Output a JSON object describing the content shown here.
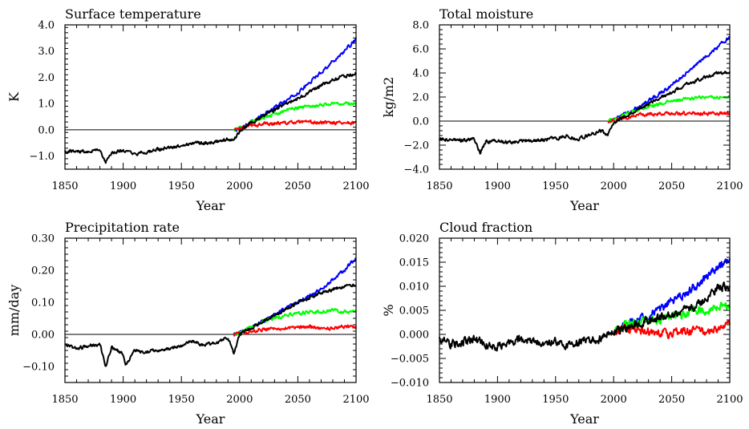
{
  "figure": {
    "background": "#ffffff",
    "scenario_colors": {
      "black": "#000000",
      "blue": "#0000ff",
      "green": "#00ff00",
      "red": "#ff0000"
    }
  },
  "chart_data": [
    {
      "type": "line",
      "title": "Surface temperature",
      "xlabel": "Year",
      "ylabel": "K",
      "xlim": [
        1850,
        2100
      ],
      "ylim": [
        -1.5,
        4.0
      ],
      "xticks": [
        1850,
        1900,
        1950,
        2000,
        2050,
        2100
      ],
      "xtick_labels": [
        "1850",
        "1900",
        "1950",
        "2000",
        "2050",
        "2100"
      ],
      "yticks": [
        -1.0,
        0.0,
        1.0,
        2.0,
        3.0,
        4.0
      ],
      "ytick_labels": [
        "−1.0",
        "0.0",
        "1.0",
        "2.0",
        "3.0",
        "4.0"
      ],
      "zero_line": true,
      "series": [
        {
          "color": "#0000ff",
          "x": [
            1995,
            2000,
            2010,
            2020,
            2030,
            2040,
            2050,
            2060,
            2070,
            2080,
            2090,
            2100
          ],
          "y": [
            0.0,
            0.05,
            0.3,
            0.55,
            0.85,
            1.1,
            1.4,
            1.8,
            2.2,
            2.6,
            3.0,
            3.45
          ]
        },
        {
          "color": "#00ff00",
          "x": [
            1995,
            2000,
            2010,
            2020,
            2030,
            2040,
            2050,
            2060,
            2070,
            2080,
            2090,
            2100
          ],
          "y": [
            0.0,
            0.05,
            0.3,
            0.45,
            0.6,
            0.75,
            0.85,
            0.9,
            0.95,
            1.0,
            1.0,
            1.0
          ]
        },
        {
          "color": "#ff0000",
          "x": [
            1995,
            2000,
            2010,
            2020,
            2030,
            2040,
            2050,
            2060,
            2070,
            2080,
            2090,
            2100
          ],
          "y": [
            0.0,
            0.05,
            0.15,
            0.22,
            0.25,
            0.27,
            0.28,
            0.28,
            0.27,
            0.28,
            0.28,
            0.25
          ]
        },
        {
          "color": "#000000",
          "x": [
            1850,
            1860,
            1870,
            1880,
            1885,
            1890,
            1900,
            1910,
            1920,
            1930,
            1940,
            1950,
            1960,
            1970,
            1980,
            1990,
            1995,
            2000,
            2010,
            2020,
            2030,
            2040,
            2050,
            2060,
            2070,
            2080,
            2090,
            2100
          ],
          "y": [
            -0.8,
            -0.82,
            -0.8,
            -0.75,
            -1.25,
            -0.9,
            -0.78,
            -0.95,
            -0.85,
            -0.75,
            -0.7,
            -0.6,
            -0.5,
            -0.5,
            -0.45,
            -0.35,
            -0.4,
            -0.05,
            0.25,
            0.5,
            0.75,
            1.0,
            1.2,
            1.45,
            1.7,
            1.9,
            2.05,
            2.15
          ]
        }
      ]
    },
    {
      "type": "line",
      "title": "Total moisture",
      "xlabel": "Year",
      "ylabel": "kg/m2",
      "xlim": [
        1850,
        2100
      ],
      "ylim": [
        -4.0,
        8.0
      ],
      "xticks": [
        1850,
        1900,
        1950,
        2000,
        2050,
        2100
      ],
      "xtick_labels": [
        "1850",
        "1900",
        "1950",
        "2000",
        "2050",
        "2100"
      ],
      "yticks": [
        -4.0,
        -2.0,
        0.0,
        2.0,
        4.0,
        6.0,
        8.0
      ],
      "ytick_labels": [
        "−4.0",
        "−2.0",
        "0.0",
        "2.0",
        "4.0",
        "6.0",
        "8.0"
      ],
      "zero_line": true,
      "series": [
        {
          "color": "#0000ff",
          "x": [
            1995,
            2000,
            2010,
            2020,
            2030,
            2040,
            2050,
            2060,
            2070,
            2080,
            2090,
            2100
          ],
          "y": [
            0.0,
            0.1,
            0.6,
            1.1,
            1.7,
            2.3,
            3.0,
            3.8,
            4.6,
            5.4,
            6.2,
            7.0
          ]
        },
        {
          "color": "#00ff00",
          "x": [
            1995,
            2000,
            2010,
            2020,
            2030,
            2040,
            2050,
            2060,
            2070,
            2080,
            2090,
            2100
          ],
          "y": [
            0.0,
            0.1,
            0.55,
            0.9,
            1.2,
            1.45,
            1.65,
            1.8,
            1.9,
            2.0,
            2.0,
            2.0
          ]
        },
        {
          "color": "#ff0000",
          "x": [
            1995,
            2000,
            2010,
            2020,
            2030,
            2040,
            2050,
            2060,
            2070,
            2080,
            2090,
            2100
          ],
          "y": [
            0.0,
            0.05,
            0.3,
            0.5,
            0.55,
            0.6,
            0.6,
            0.65,
            0.65,
            0.6,
            0.65,
            0.6
          ]
        },
        {
          "color": "#000000",
          "x": [
            1850,
            1860,
            1870,
            1880,
            1885,
            1890,
            1900,
            1910,
            1920,
            1930,
            1940,
            1950,
            1960,
            1970,
            1980,
            1990,
            1995,
            2000,
            2010,
            2020,
            2030,
            2040,
            2050,
            2060,
            2070,
            2080,
            2090,
            2100
          ],
          "y": [
            -1.5,
            -1.6,
            -1.6,
            -1.5,
            -2.6,
            -1.7,
            -1.65,
            -1.75,
            -1.7,
            -1.6,
            -1.55,
            -1.45,
            -1.2,
            -1.5,
            -1.1,
            -0.8,
            -1.2,
            -0.1,
            0.4,
            0.9,
            1.4,
            1.9,
            2.4,
            2.9,
            3.3,
            3.7,
            4.0,
            4.1
          ]
        }
      ]
    },
    {
      "type": "line",
      "title": "Precipitation rate",
      "xlabel": "Year",
      "ylabel": "mm/day",
      "xlim": [
        1850,
        2100
      ],
      "ylim": [
        -0.15,
        0.3
      ],
      "xticks": [
        1850,
        1900,
        1950,
        2000,
        2050,
        2100
      ],
      "xtick_labels": [
        "1850",
        "1900",
        "1950",
        "2000",
        "2050",
        "2100"
      ],
      "yticks": [
        -0.1,
        0.0,
        0.1,
        0.2,
        0.3
      ],
      "ytick_labels": [
        "−0.10",
        "0.00",
        "0.10",
        "0.20",
        "0.30"
      ],
      "zero_line": true,
      "series": [
        {
          "color": "#0000ff",
          "x": [
            1995,
            2000,
            2010,
            2020,
            2030,
            2040,
            2050,
            2060,
            2070,
            2080,
            2090,
            2100
          ],
          "y": [
            0.0,
            0.005,
            0.02,
            0.04,
            0.06,
            0.08,
            0.1,
            0.12,
            0.14,
            0.17,
            0.2,
            0.24
          ]
        },
        {
          "color": "#00ff00",
          "x": [
            1995,
            2000,
            2010,
            2020,
            2030,
            2040,
            2050,
            2060,
            2070,
            2080,
            2090,
            2100
          ],
          "y": [
            0.0,
            0.005,
            0.025,
            0.04,
            0.05,
            0.06,
            0.065,
            0.07,
            0.07,
            0.075,
            0.07,
            0.07
          ]
        },
        {
          "color": "#ff0000",
          "x": [
            1995,
            2000,
            2010,
            2020,
            2030,
            2040,
            2050,
            2060,
            2070,
            2080,
            2090,
            2100
          ],
          "y": [
            0.0,
            0.003,
            0.01,
            0.015,
            0.02,
            0.02,
            0.02,
            0.025,
            0.02,
            0.02,
            0.025,
            0.02
          ]
        },
        {
          "color": "#000000",
          "x": [
            1850,
            1860,
            1870,
            1880,
            1885,
            1890,
            1900,
            1902,
            1910,
            1920,
            1930,
            1940,
            1950,
            1960,
            1970,
            1980,
            1990,
            1995,
            2000,
            2010,
            2020,
            2030,
            2040,
            2050,
            2060,
            2070,
            2080,
            2090,
            2100
          ],
          "y": [
            -0.03,
            -0.045,
            -0.035,
            -0.03,
            -0.1,
            -0.04,
            -0.06,
            -0.1,
            -0.05,
            -0.055,
            -0.05,
            -0.045,
            -0.035,
            -0.02,
            -0.035,
            -0.025,
            -0.01,
            -0.06,
            0.0,
            0.02,
            0.04,
            0.06,
            0.08,
            0.1,
            0.115,
            0.13,
            0.14,
            0.15,
            0.155
          ]
        }
      ]
    },
    {
      "type": "line",
      "title": "Cloud fraction",
      "xlabel": "Year",
      "ylabel": "%",
      "xlim": [
        1850,
        2100
      ],
      "ylim": [
        -0.01,
        0.02
      ],
      "xticks": [
        1850,
        1900,
        1950,
        2000,
        2050,
        2100
      ],
      "xtick_labels": [
        "1850",
        "1900",
        "1950",
        "2000",
        "2050",
        "2100"
      ],
      "yticks": [
        -0.01,
        -0.005,
        0.0,
        0.005,
        0.01,
        0.015,
        0.02
      ],
      "ytick_labels": [
        "−0.010",
        "−0.005",
        "0.000",
        "0.005",
        "0.010",
        "0.015",
        "0.020"
      ],
      "zero_line": false,
      "series": [
        {
          "color": "#0000ff",
          "x": [
            2000,
            2010,
            2020,
            2030,
            2040,
            2050,
            2060,
            2070,
            2080,
            2090,
            2100
          ],
          "y": [
            0.0,
            0.002,
            0.003,
            0.004,
            0.005,
            0.007,
            0.008,
            0.01,
            0.012,
            0.014,
            0.015
          ]
        },
        {
          "color": "#00ff00",
          "x": [
            2000,
            2010,
            2020,
            2030,
            2040,
            2050,
            2060,
            2070,
            2080,
            2090,
            2100
          ],
          "y": [
            0.0,
            0.002,
            0.002,
            0.003,
            0.003,
            0.004,
            0.004,
            0.005,
            0.005,
            0.006,
            0.006
          ]
        },
        {
          "color": "#ff0000",
          "x": [
            2000,
            2010,
            2020,
            2030,
            2040,
            2050,
            2060,
            2070,
            2080,
            2090,
            2100
          ],
          "y": [
            0.0,
            0.001,
            0.001,
            0.0005,
            0.0005,
            0.0,
            0.0005,
            0.001,
            0.0005,
            0.001,
            0.002
          ]
        },
        {
          "color": "#000000",
          "x": [
            1850,
            1860,
            1870,
            1880,
            1890,
            1900,
            1910,
            1920,
            1930,
            1940,
            1950,
            1960,
            1970,
            1980,
            1990,
            2000,
            2010,
            2020,
            2030,
            2040,
            2050,
            2060,
            2070,
            2080,
            2090,
            2100
          ],
          "y": [
            -0.001,
            -0.002,
            -0.0015,
            -0.001,
            -0.002,
            -0.0025,
            -0.0015,
            -0.001,
            -0.0015,
            -0.002,
            -0.0015,
            -0.0025,
            -0.0015,
            -0.001,
            -0.001,
            0.001,
            0.001,
            0.002,
            0.003,
            0.0035,
            0.004,
            0.005,
            0.006,
            0.0075,
            0.0095,
            0.01
          ]
        }
      ]
    }
  ]
}
